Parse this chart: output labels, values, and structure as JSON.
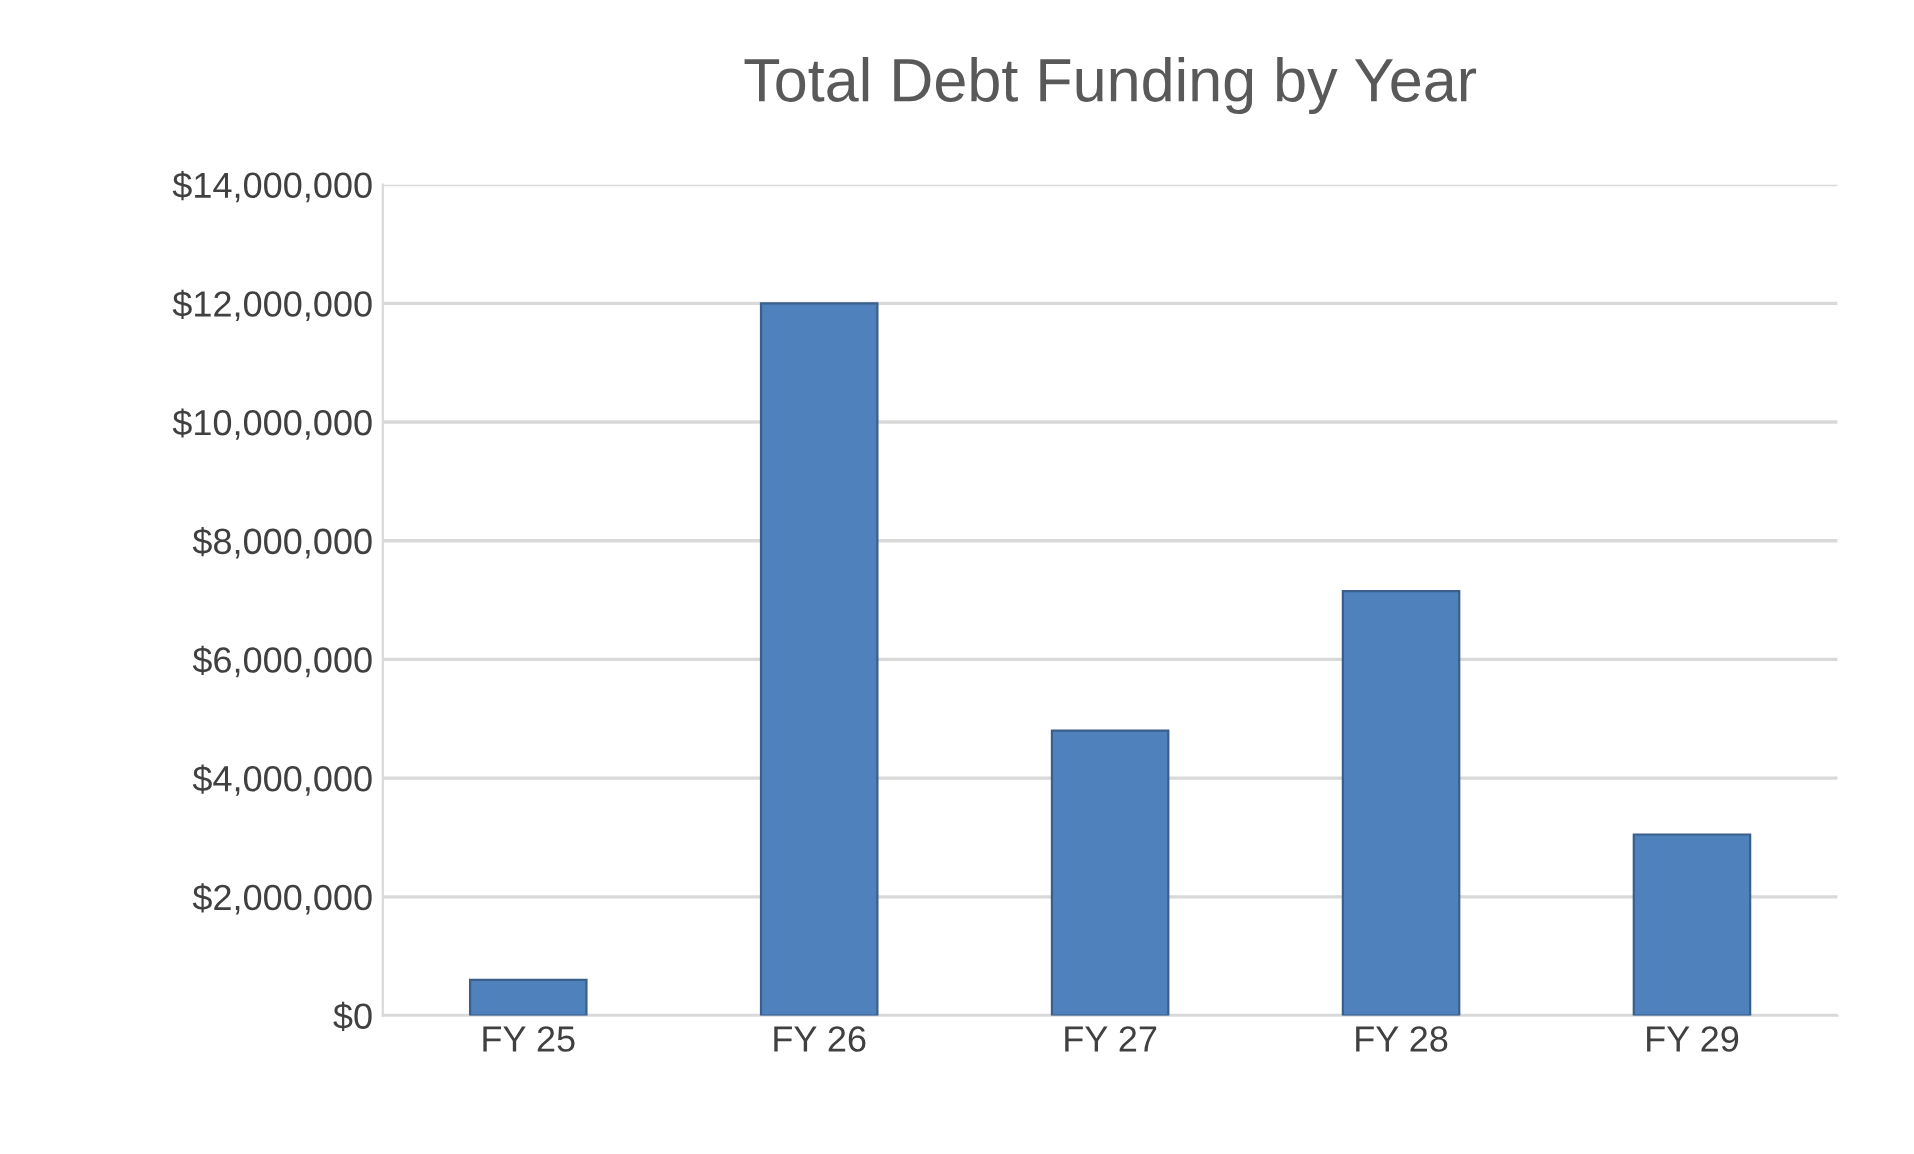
{
  "chart_data": {
    "type": "bar",
    "title": "Total Debt Funding by Year",
    "categories": [
      "FY 25",
      "FY 26",
      "FY 27",
      "FY 28",
      "FY 29"
    ],
    "values": [
      600000,
      12000000,
      4800000,
      7150000,
      3050000
    ],
    "color": "#4f81bd",
    "ylim": [
      0,
      14000000
    ],
    "yticks": [
      {
        "value": 0,
        "label": "$0"
      },
      {
        "value": 2000000,
        "label": "$2,000,000"
      },
      {
        "value": 4000000,
        "label": "$4,000,000"
      },
      {
        "value": 6000000,
        "label": "$6,000,000"
      },
      {
        "value": 8000000,
        "label": "$8,000,000"
      },
      {
        "value": 10000000,
        "label": "$10,000,000"
      },
      {
        "value": 12000000,
        "label": "$12,000,000"
      },
      {
        "value": 14000000,
        "label": "$14,000,000"
      }
    ],
    "grid": "y"
  }
}
